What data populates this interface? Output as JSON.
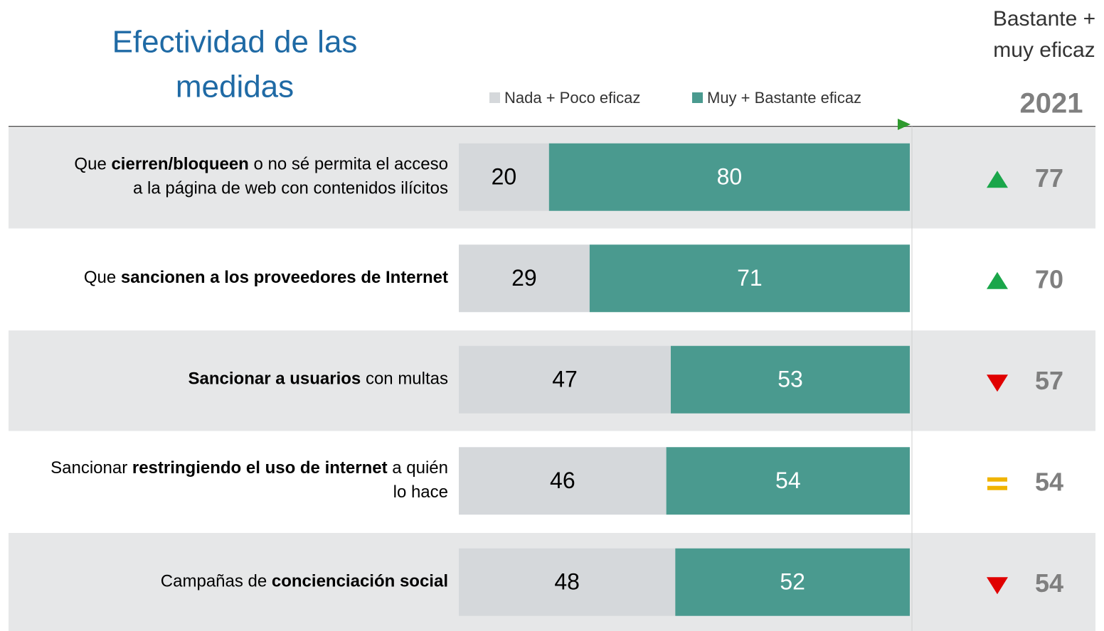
{
  "chart_data": {
    "type": "stacked_bar_horizontal",
    "title": [
      "Efectividad de las",
      "medidas"
    ],
    "categories": [
      [
        [
          {
            "text": "Que "
          },
          {
            "text": "cierren/bloqueen",
            "bold": true
          },
          {
            "text": " o no sé permita el acceso"
          }
        ],
        [
          {
            "text": "a la página de web con contenidos ilícitos"
          }
        ]
      ],
      [
        [
          {
            "text": "Que "
          },
          {
            "text": "sancionen a los proveedores de Internet",
            "bold": true
          }
        ]
      ],
      [
        [
          {
            "text": "Sancionar a usuarios",
            "bold": true
          },
          {
            "text": " con multas"
          }
        ]
      ],
      [
        [
          {
            "text": "Sancionar "
          },
          {
            "text": "restringiendo el uso de internet",
            "bold": true
          },
          {
            "text": " a quién"
          }
        ],
        [
          {
            "text": "lo hace"
          }
        ]
      ],
      [
        [
          {
            "text": "Campañas de "
          },
          {
            "text": "concienciación social",
            "bold": true
          }
        ]
      ]
    ],
    "series": [
      {
        "name": "Nada + Poco eficaz",
        "color": "#d5d8db",
        "label_color": "#000000",
        "values": [
          20,
          29,
          47,
          46,
          48
        ]
      },
      {
        "name": "Muy + Bastante eficaz",
        "color": "#4a9a8f",
        "label_color": "#ffffff",
        "values": [
          80,
          71,
          53,
          54,
          52
        ]
      }
    ],
    "xlim": [
      0,
      100
    ],
    "comparison": {
      "title": [
        "Bastante +",
        "muy eficaz"
      ],
      "year": "2021",
      "values": [
        77,
        70,
        57,
        54,
        54
      ],
      "trend": [
        "up",
        "up",
        "down",
        "equal",
        "down"
      ]
    }
  }
}
